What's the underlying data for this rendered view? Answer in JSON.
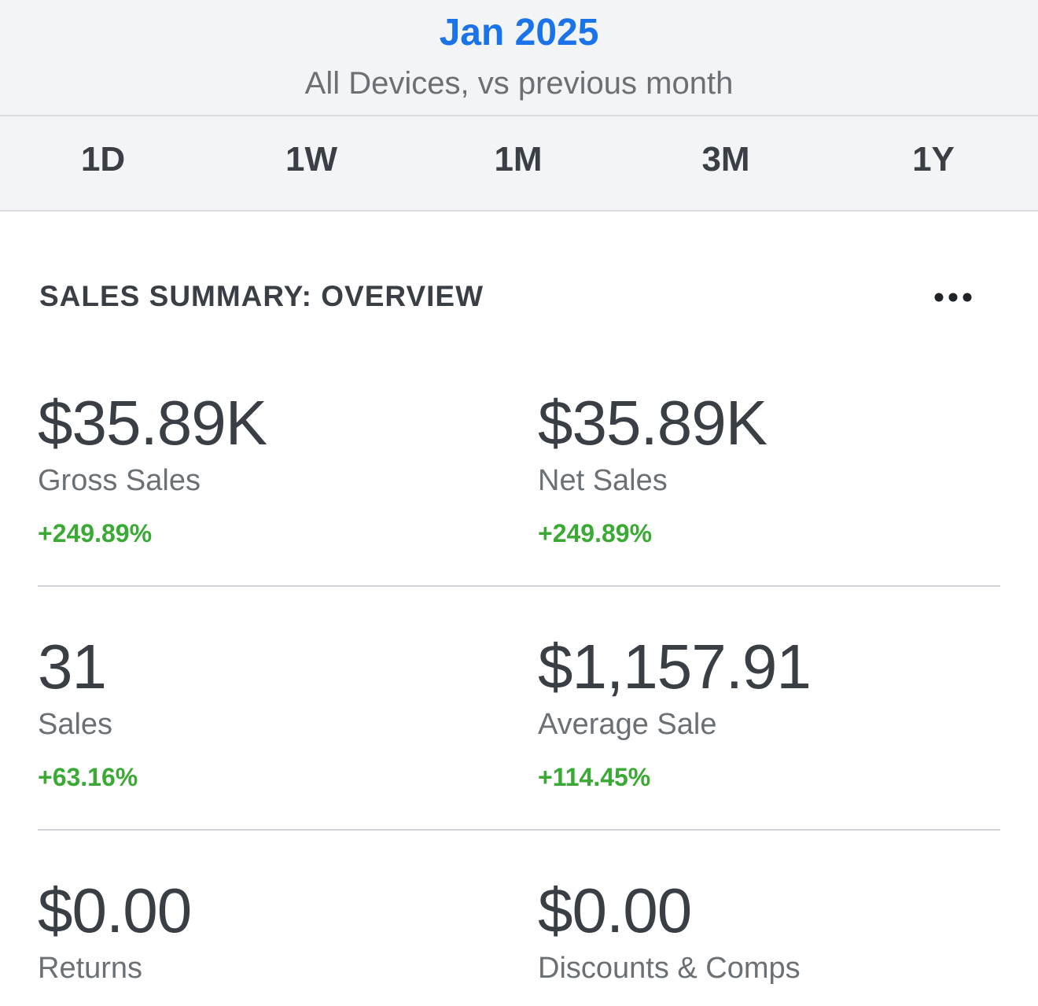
{
  "header": {
    "period": "Jan 2025",
    "subtitle": "All Devices, vs previous month"
  },
  "ranges": [
    "1D",
    "1W",
    "1M",
    "3M",
    "1Y"
  ],
  "section": {
    "title": "SALES SUMMARY: OVERVIEW",
    "more_icon": "ellipsis-icon"
  },
  "metrics": {
    "gross_sales": {
      "value": "$35.89K",
      "label": "Gross Sales",
      "change": "+249.89%"
    },
    "net_sales": {
      "value": "$35.89K",
      "label": "Net Sales",
      "change": "+249.89%"
    },
    "sales": {
      "value": "31",
      "label": "Sales",
      "change": "+63.16%"
    },
    "average_sale": {
      "value": "$1,157.91",
      "label": "Average Sale",
      "change": "+114.45%"
    },
    "returns": {
      "value": "$0.00",
      "label": "Returns"
    },
    "discounts": {
      "value": "$0.00",
      "label": "Discounts & Comps"
    }
  },
  "colors": {
    "accent": "#1a73e8",
    "positive": "#3aaa35",
    "text": "#3a3f45",
    "muted": "#6b7075"
  }
}
